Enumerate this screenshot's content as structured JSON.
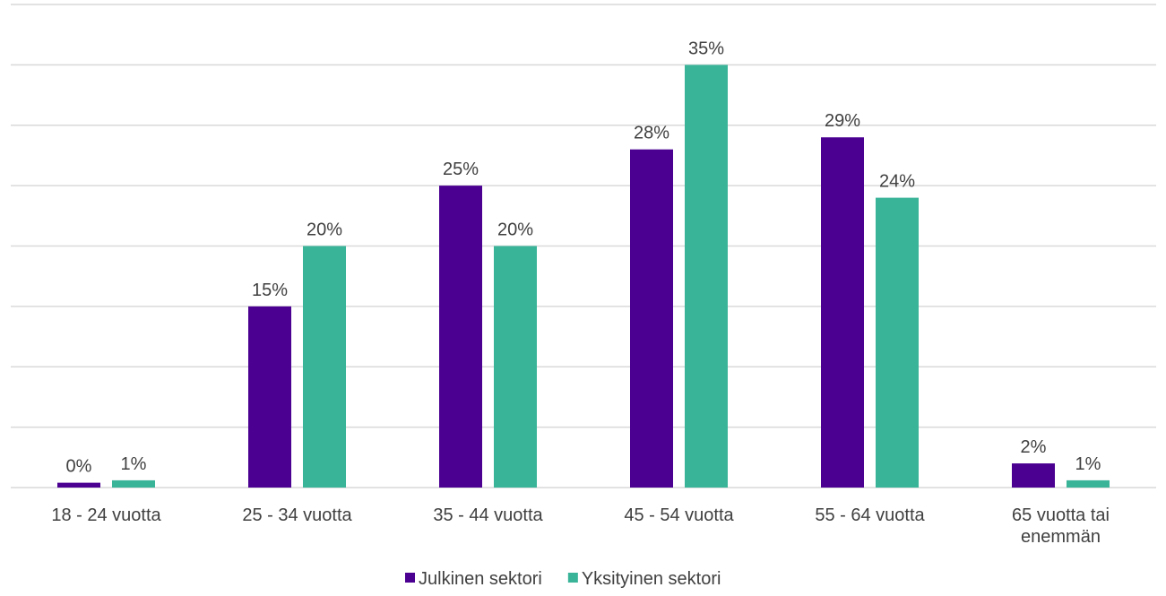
{
  "chart_data": {
    "type": "bar",
    "categories": [
      [
        "18 - 24 vuotta"
      ],
      [
        "25 - 34 vuotta"
      ],
      [
        "35 - 44 vuotta"
      ],
      [
        "45 - 54 vuotta"
      ],
      [
        "55 - 64 vuotta"
      ],
      [
        "65 vuotta tai",
        "enemmän"
      ]
    ],
    "series": [
      {
        "name": "Julkinen sektori",
        "color": "#4b0091",
        "values": [
          0.4,
          15,
          25,
          28,
          29,
          2
        ],
        "labels": [
          "0%",
          "15%",
          "25%",
          "28%",
          "29%",
          "2%"
        ]
      },
      {
        "name": "Yksityinen sektori",
        "color": "#3ab499",
        "values": [
          0.6,
          20,
          20,
          35,
          24,
          0.6
        ],
        "labels": [
          "1%",
          "20%",
          "20%",
          "35%",
          "24%",
          "1%"
        ]
      }
    ],
    "ylim": [
      0,
      40
    ],
    "grid": true,
    "gridlines": [
      5,
      10,
      15,
      20,
      25,
      30,
      35,
      40
    ],
    "legend_position": "bottom",
    "title": "",
    "xlabel": "",
    "ylabel": ""
  }
}
